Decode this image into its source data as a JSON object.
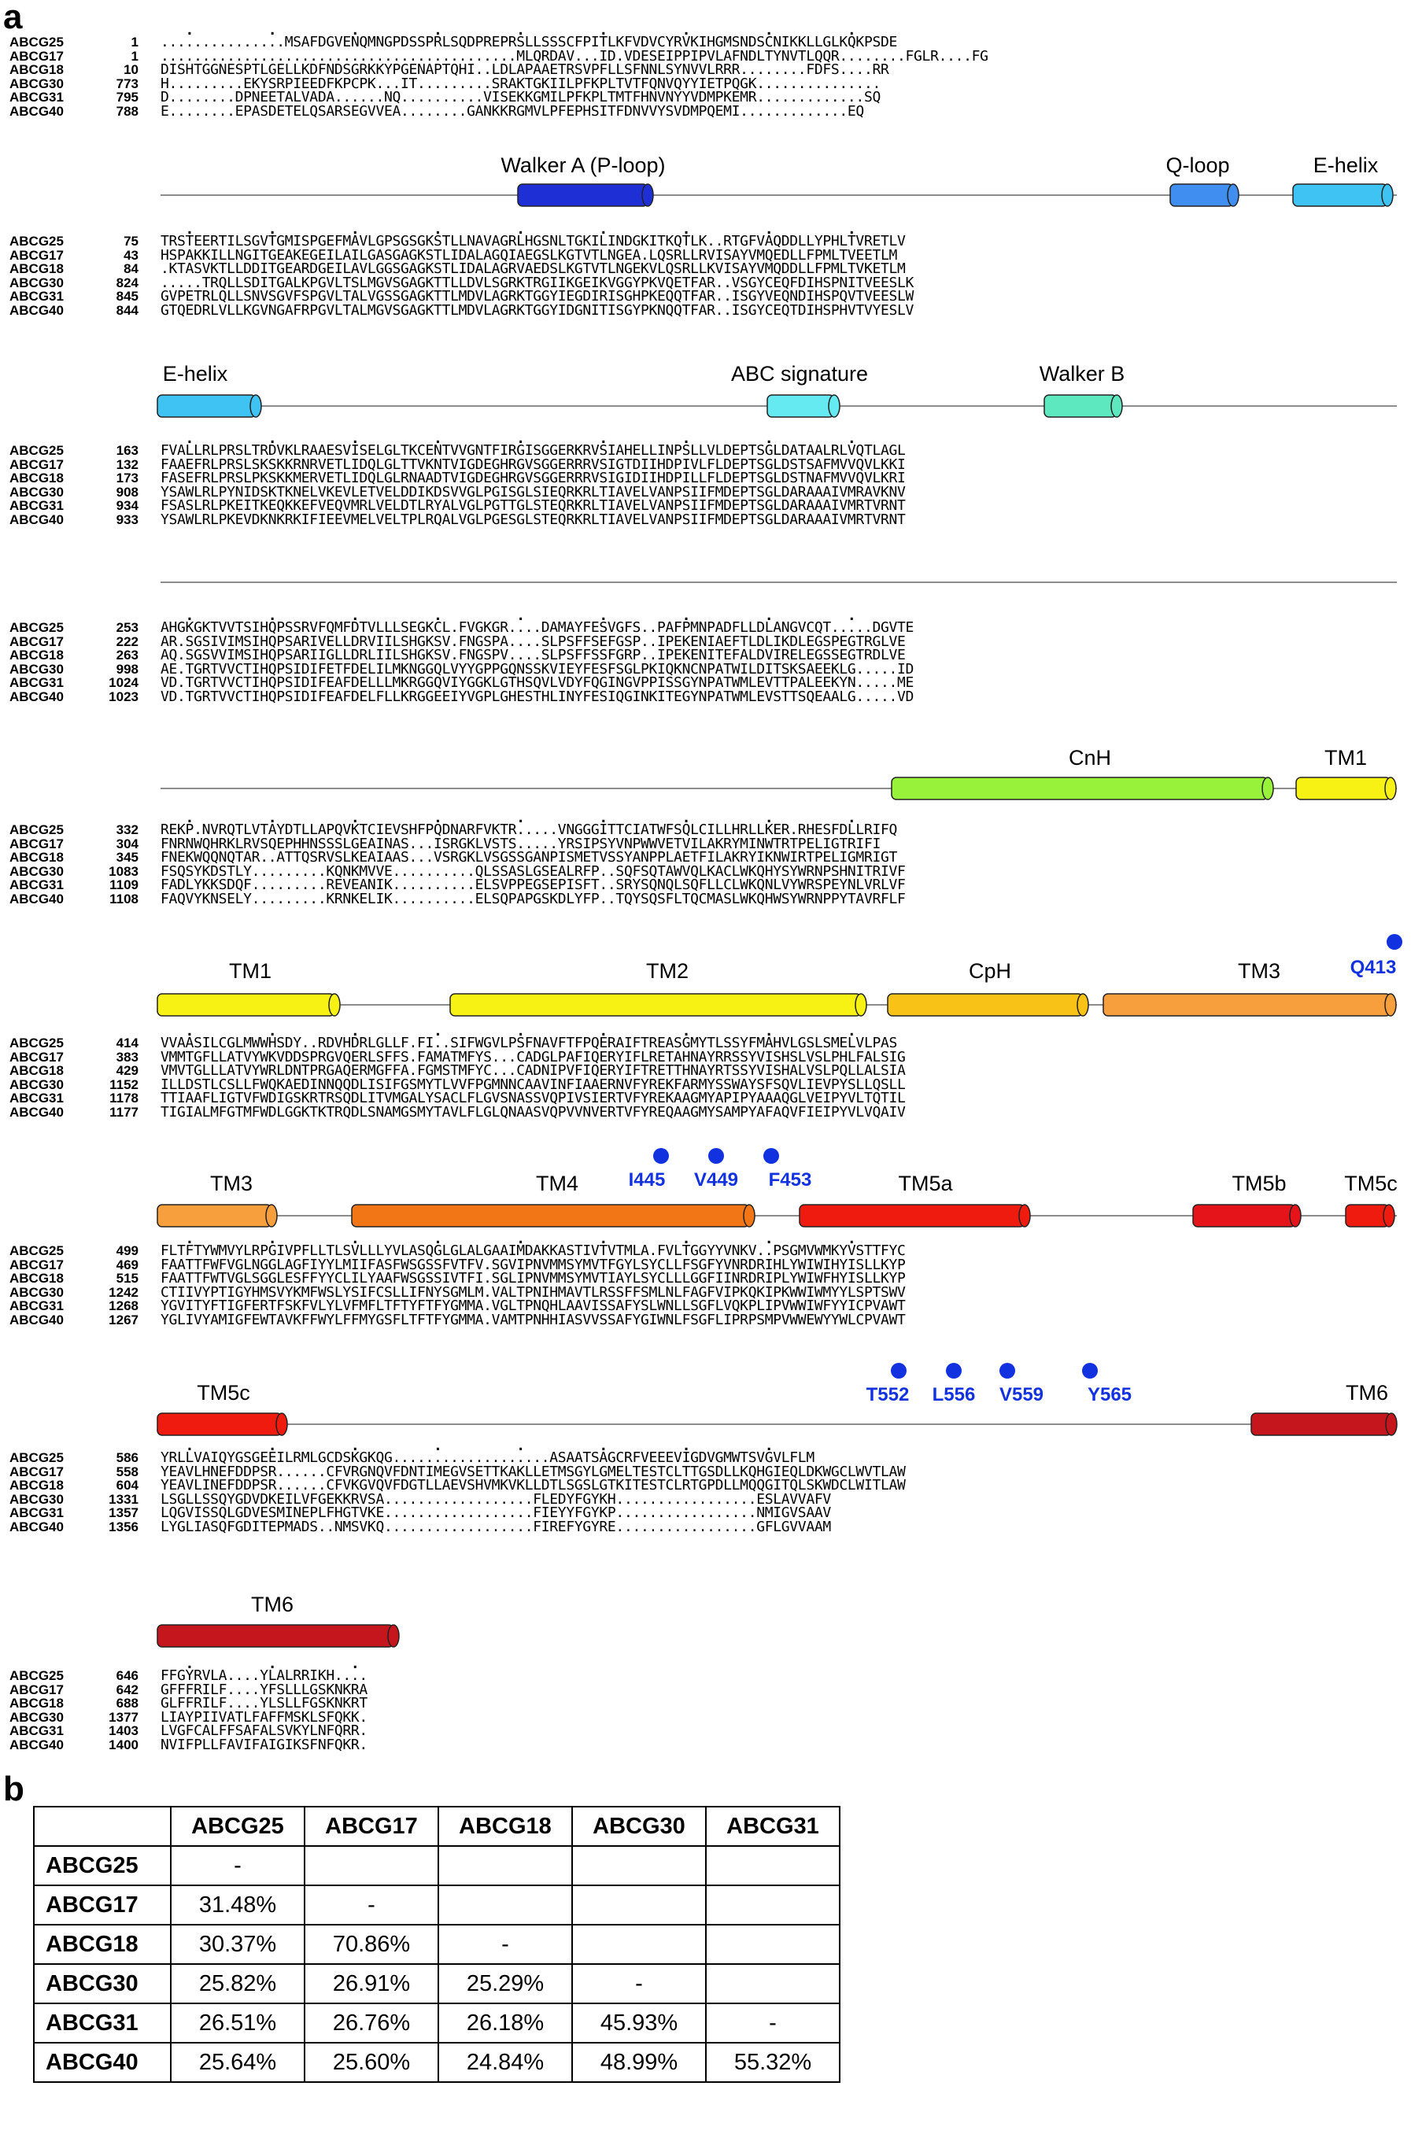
{
  "panel_a_label": "a",
  "panel_b_label": "b",
  "sequence_names": [
    "ABCG25",
    "ABCG17",
    "ABCG18",
    "ABCG30",
    "ABCG31",
    "ABCG40"
  ],
  "alignment_blocks": [
    {
      "rows": [
        {
          "name": "ABCG25",
          "start": "1",
          "seq": "...............MSAFDGVENQMNGPDSSPRLSQDPREPRSLLSSSCFPITLKFVDVCYRVKIHGMSNDSCNIKKLLGLKQKPSDE"
        },
        {
          "name": "ABCG17",
          "start": "1",
          "seq": "...........................................MLQRDAV...ID.VDESEIPPIPVLAFNDLTYNVTLQQR........FGLR....FG"
        },
        {
          "name": "ABCG18",
          "start": "10",
          "seq": "DISHTGGNESPTLGELLKDFNDSGRKKYPGENAPTQHI..LDLAPAAETRSVPFLLSFNNLSYNVVLRRR........FDFS....RR"
        },
        {
          "name": "ABCG30",
          "start": "773",
          "seq": "H.........EKYSRPIEEDFKPCPK...IT.........SRAKTGKIILPFKPLTVTFQNVQYYIETPQGK..............."
        },
        {
          "name": "ABCG31",
          "start": "795",
          "seq": "D........DPNEETALVADA......NQ..........VISEKKGMILPFKPLTMTFHNVNYYVDMPKEMR.............SQ"
        },
        {
          "name": "ABCG40",
          "start": "788",
          "seq": "E........EPASDETELQSARSEGVVEA........GANKKRGMVLPFEPHSITFDNVVYSVDMPQEMI.............EQ"
        }
      ]
    },
    {
      "rows": [
        {
          "name": "ABCG25",
          "start": "75",
          "seq": "TRSTEERTILSGVTGMISPGEFMAVLGPSGSGKSTLLNAVAGRLHGSNLTGKILINDGKITKQTLK..RTGFVAQDDLLYPHLTVRETLV"
        },
        {
          "name": "ABCG17",
          "start": "43",
          "seq": "HSPAKKILLNGITGEAKEGEILAILGASGAGKSTLIDALAGQIAEGSLKGTVTLNGEA.LQSRLLRVISAYVMQEDLLFPMLTVEETLM"
        },
        {
          "name": "ABCG18",
          "start": "84",
          "seq": ".KTASVKTLLDDITGEARDGEILAVLGGSGAGKSTLIDALAGRVAEDSLKGTVTLNGEKVLQSRLLKVISAYVMQDDLLFPMLTVKETLM"
        },
        {
          "name": "ABCG30",
          "start": "824",
          "seq": ".....TRQLLSDITGALKPGVLTSLMGVSGAGKTTLLDVLSGRKTRGIIKGEIKVGGYPKVQETFAR..VSGYCEQFDIHSPNITVEESLK"
        },
        {
          "name": "ABCG31",
          "start": "845",
          "seq": "GVPETRLQLLSNVSGVFSPGVLTALVGSSGAGKTTLMDVLAGRKTGGYIEGDIRISGHPKEQQTFAR..ISGYVEQNDIHSPQVTVEESLW"
        },
        {
          "name": "ABCG40",
          "start": "844",
          "seq": "GTQEDRLVLLKGVNGAFRPGVLTALMGVSGAGKTTLMDVLAGRKTGGYIDGNITISGYPKNQQTFAR..ISGYCEQTDIHSPHVTVYESLV"
        }
      ]
    },
    {
      "rows": [
        {
          "name": "ABCG25",
          "start": "163",
          "seq": "FVALLRLPRSLTRDVKLRAAESVISELGLTKCENTVVGNTFIRGISGGERKRVSIAHELLINPSLLVLDEPTSGLDATAALRLVQTLAGL"
        },
        {
          "name": "ABCG17",
          "start": "132",
          "seq": "FAAEFRLPRSLSKSKKRNRVETLIDQLGLTTVKNTVIGDEGHRGVSGGERRRVSIGTDIIHDPIVLFLDEPTSGLDSTSAFMVVQVLKKI"
        },
        {
          "name": "ABCG18",
          "start": "173",
          "seq": "FASEFRLPRSLPKSKKMERVETLIDQLGLRNAADTVIGDEGHRGVSGGERRRVSIGIDIIHDPILLFLDEPTSGLDSTNAFMVVQVLKRI"
        },
        {
          "name": "ABCG30",
          "start": "908",
          "seq": "YSAWLRLPYNIDSKTKNELVKEVLETVELDDIKDSVVGLPGISGLSIEQRKRLTIAVELVANPSIIFMDEPTSGLDARAAAIVMRAVKNV"
        },
        {
          "name": "ABCG31",
          "start": "934",
          "seq": "FSASLRLPKEITKEQKKEFVEQVMRLVELDTLRYALVGLPGTTGLSTEQRKRLTIAVELVANPSIIFMDEPTSGLDARAAAIVMRTVRNT"
        },
        {
          "name": "ABCG40",
          "start": "933",
          "seq": "YSAWLRLPKEVDKNKRKIFIEEVMELVELTPLRQALVGLPGESGLSTEQRKRLTIAVELVANPSIIFMDEPTSGLDARAAAIVMRTVRNT"
        }
      ]
    },
    {
      "rows": [
        {
          "name": "ABCG25",
          "start": "253",
          "seq": "AHGKGKTVVTSIHQPSSRVFQMFDTVLLLSEGKCL.FVGKGR....DAMAYFESVGFS..PAFPMNPADFLLDLANGVCQT.....DGVTE"
        },
        {
          "name": "ABCG17",
          "start": "222",
          "seq": "AR.SGSIVIMSIHQPSARIVELLDRVIILSHGKSV.FNGSPA....SLPSFFSEFGSP..IPEKENIAEFTLDLIKDLEGSPEGTRGLVE"
        },
        {
          "name": "ABCG18",
          "start": "263",
          "seq": "AQ.SGSVVIMSIHQPSARIIGLLDRLIILSHGKSV.FNGSPV....SLPSFFSSFGRP..IPEKENITEFALDVIRELEGSSEGTRDLVE"
        },
        {
          "name": "ABCG30",
          "start": "998",
          "seq": "AE.TGRTVVCTIHQPSIDIFETFDELILMKNGGQLVYYGPPGQNSSKVIEYFESFSGLPKIQKNCNPATWILDITSKSAEEKLG.....ID"
        },
        {
          "name": "ABCG31",
          "start": "1024",
          "seq": "VD.TGRTVVCTIHQPSIDIFEAFDELLLMKRGGQVIYGGKLGTHSQVLVDYFQGINGVPPISSGYNPATWMLEVTTPALEEKYN.....ME"
        },
        {
          "name": "ABCG40",
          "start": "1023",
          "seq": "VD.TGRTVVCTIHQPSIDIFEAFDELFLLKRGGEEIYVGPLGHESTHLINYFESIQGINKITEGYNPATWMLEVSTTSQEAALG.....VD"
        }
      ]
    },
    {
      "rows": [
        {
          "name": "ABCG25",
          "start": "332",
          "seq": "REKP.NVRQTLVTAYDTLLAPQVKTCIEVSHFPQDNARFVKTR.....VNGGGITTCIATWFSQLCILLHRLLKER.RHESFDLLRIFQ"
        },
        {
          "name": "ABCG17",
          "start": "304",
          "seq": "FNRNWQHRKLRVSQEPHHNSSSLGEAINAS...ISRGKLVSTS.....YRSIPSYVNPWWVETVILAKRYMINWTRTPELIGTRIFI"
        },
        {
          "name": "ABCG18",
          "start": "345",
          "seq": "FNEKWQQNQTAR..ATTQSRVSLKEAIAAS...VSRGKLVSGSSGANPISMETVSSYANPPLAETFILAKRYIKNWIRTPELIGMRIGT"
        },
        {
          "name": "ABCG30",
          "start": "1083",
          "seq": "FSQSYKDSTLY.........KQNKMVVE..........QLSSASLGSEALRFP..SQFSQTAWVQLKACLWKQHYSYWRNPSHNITRIVF"
        },
        {
          "name": "ABCG31",
          "start": "1109",
          "seq": "FADLYKKSDQF.........REVEANIK..........ELSVPPEGSEPISFT..SRYSQNQLSQFLLCLWKQNLVYWRSPEYNLVRLVF"
        },
        {
          "name": "ABCG40",
          "start": "1108",
          "seq": "FAQVYKNSELY.........KRNKELIK..........ELSQPAPGSKDLYFP..TQYSQSFLTQCMASLWKQHWSYWRNPPYTAVRFLF"
        }
      ]
    },
    {
      "rows": [
        {
          "name": "ABCG25",
          "start": "414",
          "seq": "VVAASILCGLMWWHSDY..RDVHDRLGLLF.FI..SIFWGVLPSFNAVFTFPQERAIFTREASGMYTLSSYFMAHVLGSLSMELVLPAS"
        },
        {
          "name": "ABCG17",
          "start": "383",
          "seq": "VMMTGFLLATVYWKVDDSPRGVQERLSFFS.FAMATMFYS...CADGLPAFIQERYIFLRETAHNAYRRSSYVISHSLVSLPHLFALSIG"
        },
        {
          "name": "ABCG18",
          "start": "429",
          "seq": "VMVTGLLLATVYWRLDNTPRGAQERMGFFA.FGMSTMFYC...CADNIPVFIQERYIFTRETTHNAYRTSSYVISHALVSLPQLLALSIA"
        },
        {
          "name": "ABCG30",
          "start": "1152",
          "seq": "ILLDSTLCSLLFWQKAEDINNQQDLISIFGSMYTLVVFPGMNNCAAVINFIAAERNVFYREKFARMYSSWAYSFSQVLIEVPYSLLQSLL"
        },
        {
          "name": "ABCG31",
          "start": "1178",
          "seq": "TTIAAFLIGTVFWDIGSKRTRSQDLITVMGALYSACLFLGVSNASSVQPIVSIERTVFYREKAAGMYAPIPYAAAQGLVEIPYVLTQTIL"
        },
        {
          "name": "ABCG40",
          "start": "1177",
          "seq": "TIGIALMFGTMFWDLGGKTKTRQDLSNAMGSMYTAVLFLGLQNAASVQPVVNVERTVFYREQAAGMYSAMPYAFAQVFIEIPYVLVQAIV"
        }
      ]
    },
    {
      "rows": [
        {
          "name": "ABCG25",
          "start": "499",
          "seq": "FLTFTYWMVYLRPGIVPFLLTLSVLLLYVLASQGLGLALGAAIMDAKKASTIVTVTMLA.FVLTGGYYVNKV..PSGMVWMKYVSTTFYC"
        },
        {
          "name": "ABCG17",
          "start": "469",
          "seq": "FAATTFWFVGLNGGLAGFIYYLMIIFASFWSGSSFVTFV.SGVIPNVMMSYMVTFGYLSYCLLFSGFYVNRDRIHLYWIWIHYISLLKYP"
        },
        {
          "name": "ABCG18",
          "start": "515",
          "seq": "FAATTFWTVGLSGGLESFFYYCLILYAAFWSGSSIVTFI.SGLIPNVMMSYMVTIAYLSYCLLLGGFIINRDRIPLYWIWFHYISLLKYP"
        },
        {
          "name": "ABCG30",
          "start": "1242",
          "seq": "CTIIVYPTIGYHMSVYKMFWSLYSIFCSLLIFNYSGMLM.VALTPNIHMAVTLRSSFFSMLNLFAGFVIPKQKIPKWWIWMYYLSPTSWV"
        },
        {
          "name": "ABCG31",
          "start": "1268",
          "seq": "YGVITYFTIGFERTFSKFVLYLVFMFLTFTYFTFYGMMA.VGLTPNQHLAAVISSAFYSLWNLLSGFLVQKPLIPVWWIWFYYICPVAWT"
        },
        {
          "name": "ABCG40",
          "start": "1267",
          "seq": "YGLIVYAMIGFEWTAVKFFWYLFFMYGSFLTFTFYGMMA.VAMTPNHHIASVVSSAFYGIWNLFSGFLIPRPSMPVWWEWYYWLCPVAWT"
        }
      ]
    },
    {
      "rows": [
        {
          "name": "ABCG25",
          "start": "586",
          "seq": "YRLLVAIQYGSGEEILRMLGCDSKGKQG...................ASAATSAGCRFVEEEVIGDVGMWTSVGVLFLM"
        },
        {
          "name": "ABCG17",
          "start": "558",
          "seq": "YEAVLHNEFDDPSR......CFVRGNQVFDNTIMEGVSETTKAKLLETMSGYLGMELTESTCLTTGSDLLKQHGIEQLDKWGCLWVTLAW"
        },
        {
          "name": "ABCG18",
          "start": "604",
          "seq": "YEAVLINEFDDPSR......CFVKGVQVFDGTLLAEVSHVMKVKLLDTLSGSLGTKITESTCLRTGPDLLMQQGITQLSKWDCLWITLAW"
        },
        {
          "name": "ABCG30",
          "start": "1331",
          "seq": "LSGLLSSQYGDVDKEILVFGEKKRVSA..................FLEDYFGYKH.................ESLAVVAFV"
        },
        {
          "name": "ABCG31",
          "start": "1357",
          "seq": "LQGVISSQLGDVESMINEPLFHGTVKE..................FIEYYFGYKP.................NMIGVSAAV"
        },
        {
          "name": "ABCG40",
          "start": "1356",
          "seq": "LYGLIASQFGDITEPMADS..NMSVKQ..................FIREFYGYRE.................GFLGVVAAM"
        }
      ]
    },
    {
      "rows": [
        {
          "name": "ABCG25",
          "start": "646",
          "seq": "FFGYRVLA....YLALRRIKH...."
        },
        {
          "name": "ABCG17",
          "start": "642",
          "seq": "GFFFRILF....YFSLLLGSKNKRA"
        },
        {
          "name": "ABCG18",
          "start": "688",
          "seq": "GLFFRILF....YLSLLFGSKNKRT"
        },
        {
          "name": "ABCG30",
          "start": "1377",
          "seq": "LIAYPIIVATLFAFFMSKLSFQKK."
        },
        {
          "name": "ABCG31",
          "start": "1403",
          "seq": "LVGFCALFFSAFALSVKYLNFQRR."
        },
        {
          "name": "ABCG40",
          "start": "1400",
          "seq": "NVIFPLLFAVIFAIGIKSFNFQKR."
        }
      ]
    }
  ],
  "feature_labels": {
    "walker_a": "Walker A (P-loop)",
    "q_loop": "Q-loop",
    "e_helix": "E-helix",
    "abc_signature": "ABC signature",
    "walker_b": "Walker B",
    "cnh": "CnH",
    "tm1": "TM1",
    "tm2": "TM2",
    "cph": "CpH",
    "tm3": "TM3",
    "tm4": "TM4",
    "tm5a": "TM5a",
    "tm5b": "TM5b",
    "tm5c": "TM5c",
    "tm6": "TM6"
  },
  "feature_colors": {
    "walker_a": "#1e2fd6",
    "q_loop": "#3f8ef0",
    "e_helix": "#3fc3f2",
    "abc_signature": "#66eaf2",
    "walker_b": "#5ee8c0",
    "cnh": "#99f23a",
    "tm1": "#f8f214",
    "tm2": "#f8f214",
    "cph": "#f8c217",
    "tm3": "#f79e3d",
    "tm4": "#f27616",
    "tm5a": "#ee1b0e",
    "tm5b": "#e4141a",
    "tm5c": "#ee1b0e",
    "tm6": "#c4161c",
    "residue_marker": "#1232e0",
    "conserved_fill": "#e41a1c",
    "similar_text": "#d62024",
    "similar_box": "#3b3fc4"
  },
  "residue_markers": [
    "Q413",
    "I445",
    "V449",
    "F453",
    "T552",
    "L556",
    "V559",
    "Y565"
  ],
  "identity_table": {
    "columns": [
      "ABCG25",
      "ABCG17",
      "ABCG18",
      "ABCG30",
      "ABCG31"
    ],
    "rows": [
      {
        "name": "ABCG25",
        "values": [
          "-",
          "",
          "",
          "",
          ""
        ]
      },
      {
        "name": "ABCG17",
        "values": [
          "31.48%",
          "-",
          "",
          "",
          ""
        ]
      },
      {
        "name": "ABCG18",
        "values": [
          "30.37%",
          "70.86%",
          "-",
          "",
          ""
        ]
      },
      {
        "name": "ABCG30",
        "values": [
          "25.82%",
          "26.91%",
          "25.29%",
          "-",
          ""
        ]
      },
      {
        "name": "ABCG31",
        "values": [
          "26.51%",
          "26.76%",
          "26.18%",
          "45.93%",
          "-"
        ]
      },
      {
        "name": "ABCG40",
        "values": [
          "25.64%",
          "25.60%",
          "24.84%",
          "48.99%",
          "55.32%"
        ]
      }
    ]
  }
}
